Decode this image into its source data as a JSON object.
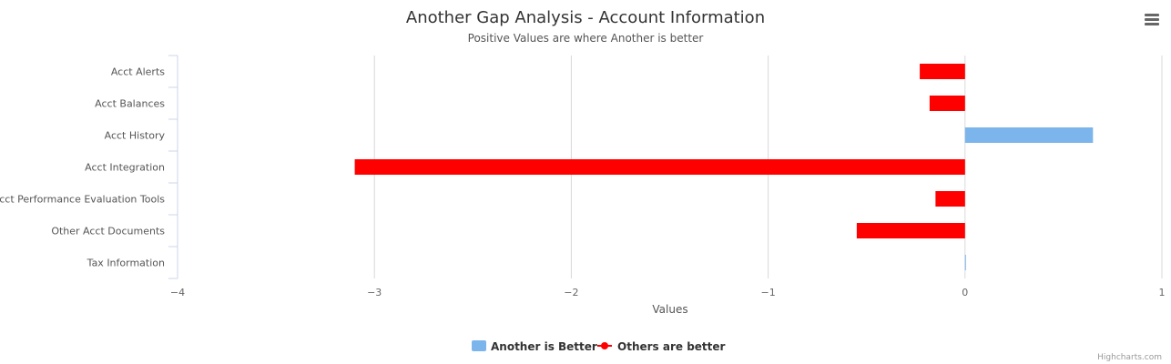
{
  "chart_data": {
    "type": "bar",
    "orientation": "horizontal",
    "title": "Another Gap Analysis - Account Information",
    "subtitle": "Positive Values are where Another is better",
    "xlabel": "Values",
    "xlim": [
      -4,
      1
    ],
    "ticks": [
      -4,
      -3,
      -2,
      -1,
      0,
      1
    ],
    "tick_labels": [
      "−4",
      "−3",
      "−2",
      "−1",
      "0",
      "1"
    ],
    "grid": true,
    "categories": [
      "Acct Alerts",
      "Acct Balances",
      "Acct History",
      "Acct Integration",
      "Acct Performance Evaluation Tools",
      "Other Acct Documents",
      "Tax Information"
    ],
    "values": [
      -0.23,
      -0.18,
      0.65,
      -3.1,
      -0.15,
      -0.55,
      0
    ],
    "positive_color": "#7cb5ec",
    "negative_color": "#ff0000",
    "legend": {
      "position": "bottom-center",
      "items": [
        {
          "label": "Another is Better",
          "color": "#7cb5ec",
          "symbol": "square"
        },
        {
          "label": "Others are better",
          "color": "#ff0000",
          "symbol": "line-marker"
        }
      ]
    },
    "credits": "Highcharts.com"
  },
  "menu": {
    "icon": "hamburger-menu-icon"
  }
}
